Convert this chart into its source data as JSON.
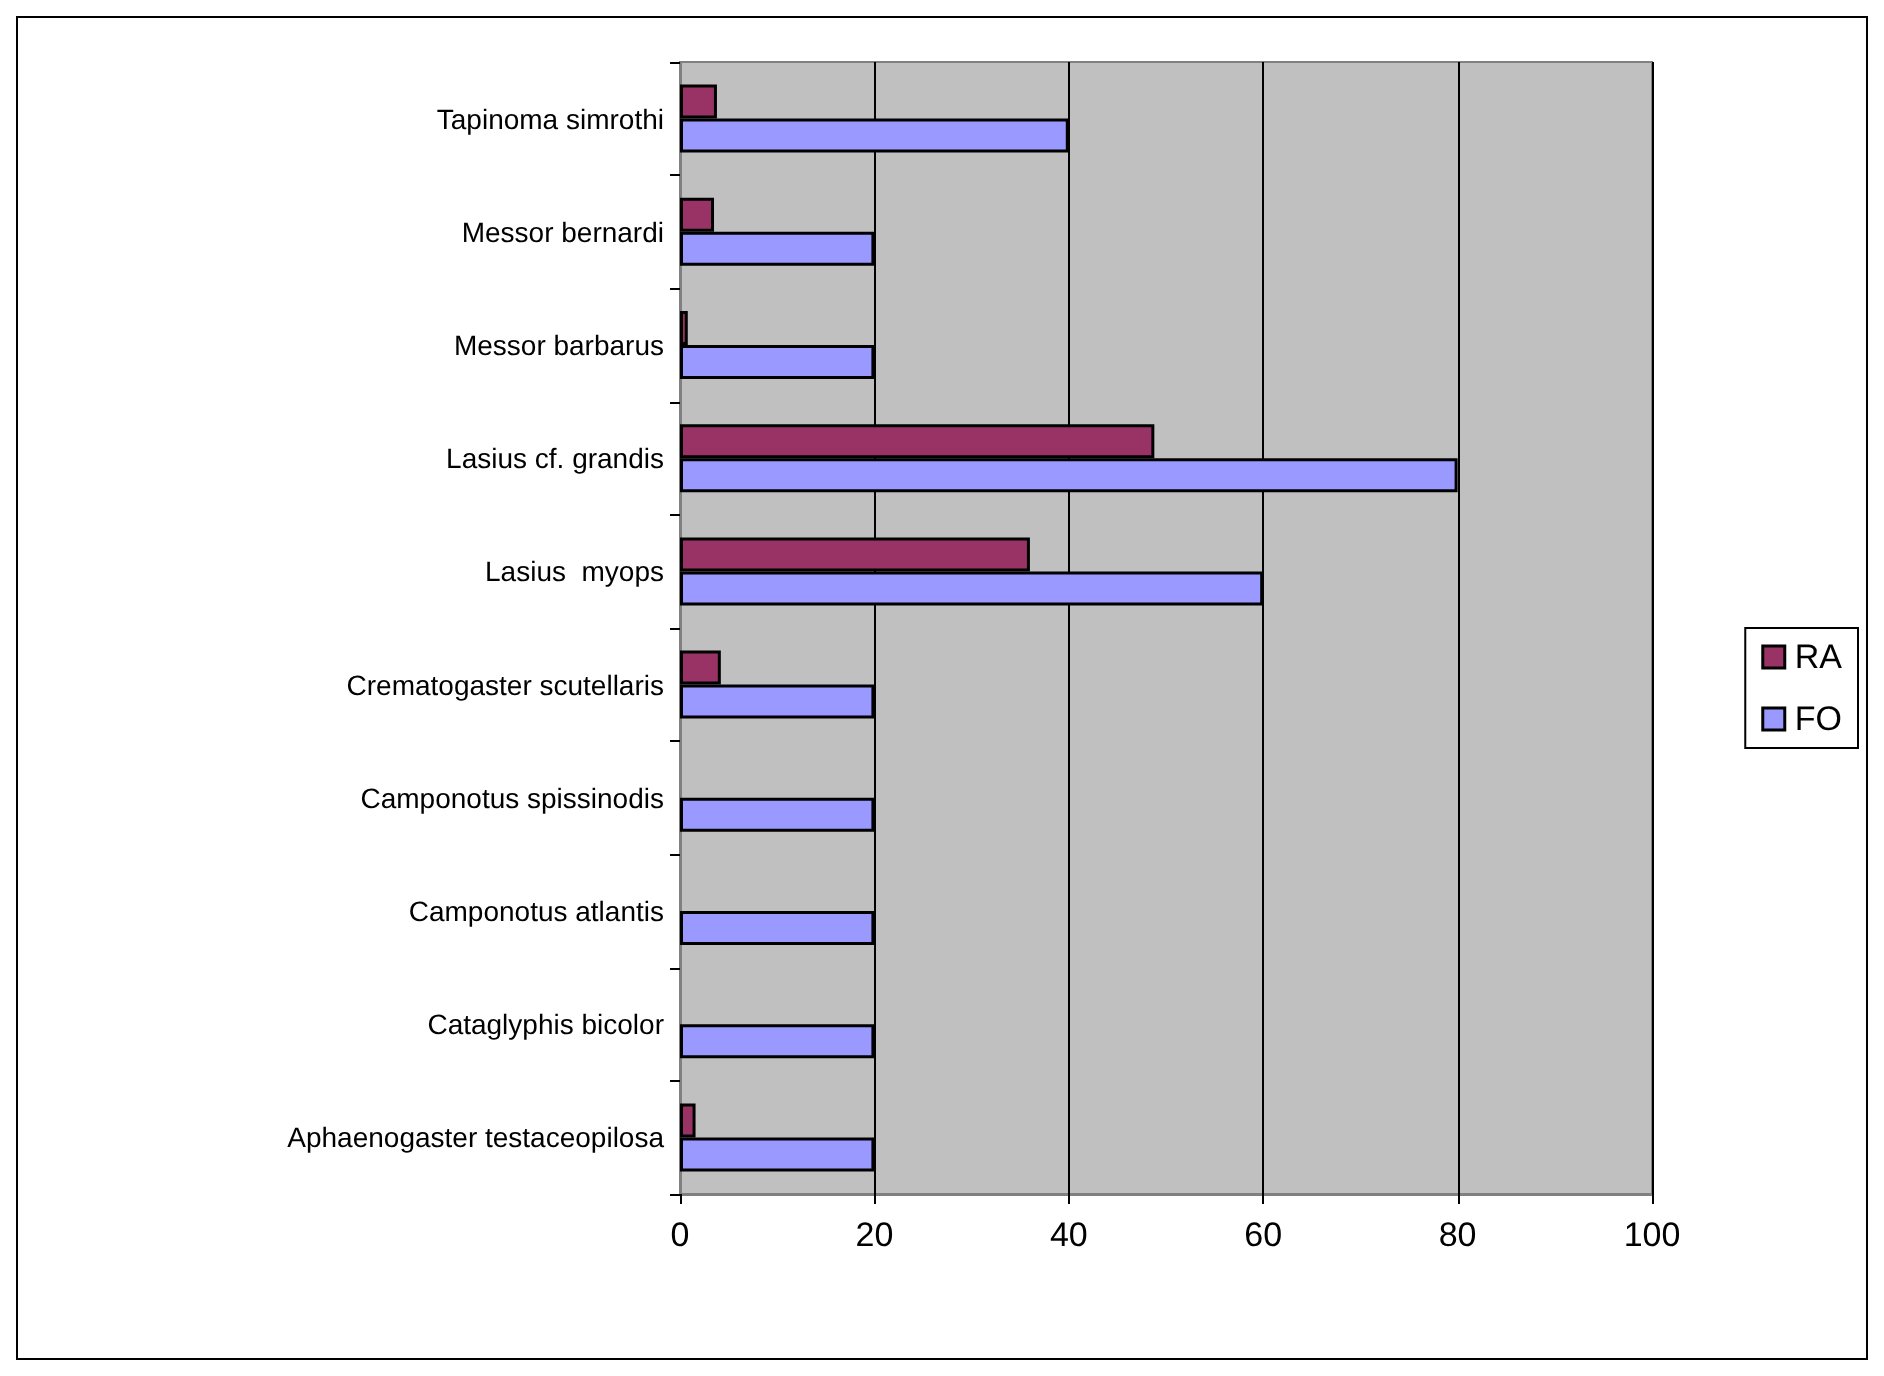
{
  "chart_data": {
    "type": "bar",
    "orientation": "horizontal",
    "categories": [
      "Tapinoma simrothi",
      "Messor bernardi",
      "Messor barbarus",
      "Lasius cf. grandis",
      "Lasius  myops",
      "Crematogaster scutellaris",
      "Camponotus spissinodis",
      "Camponotus atlantis",
      "Cataglyphis bicolor",
      "Aphaenogaster testaceopilosa"
    ],
    "series": [
      {
        "name": "RA",
        "color": "#993366",
        "values": [
          3.8,
          3.5,
          0.8,
          48.8,
          36,
          4.2,
          0,
          0,
          0,
          1.6
        ]
      },
      {
        "name": "FO",
        "color": "#9999ff",
        "values": [
          40,
          20,
          20,
          80,
          60,
          20,
          20,
          20,
          20,
          20
        ]
      }
    ],
    "xlim": [
      0,
      100
    ],
    "xticks": [
      0,
      20,
      40,
      60,
      80,
      100
    ],
    "grid": "x",
    "legend": "right"
  }
}
